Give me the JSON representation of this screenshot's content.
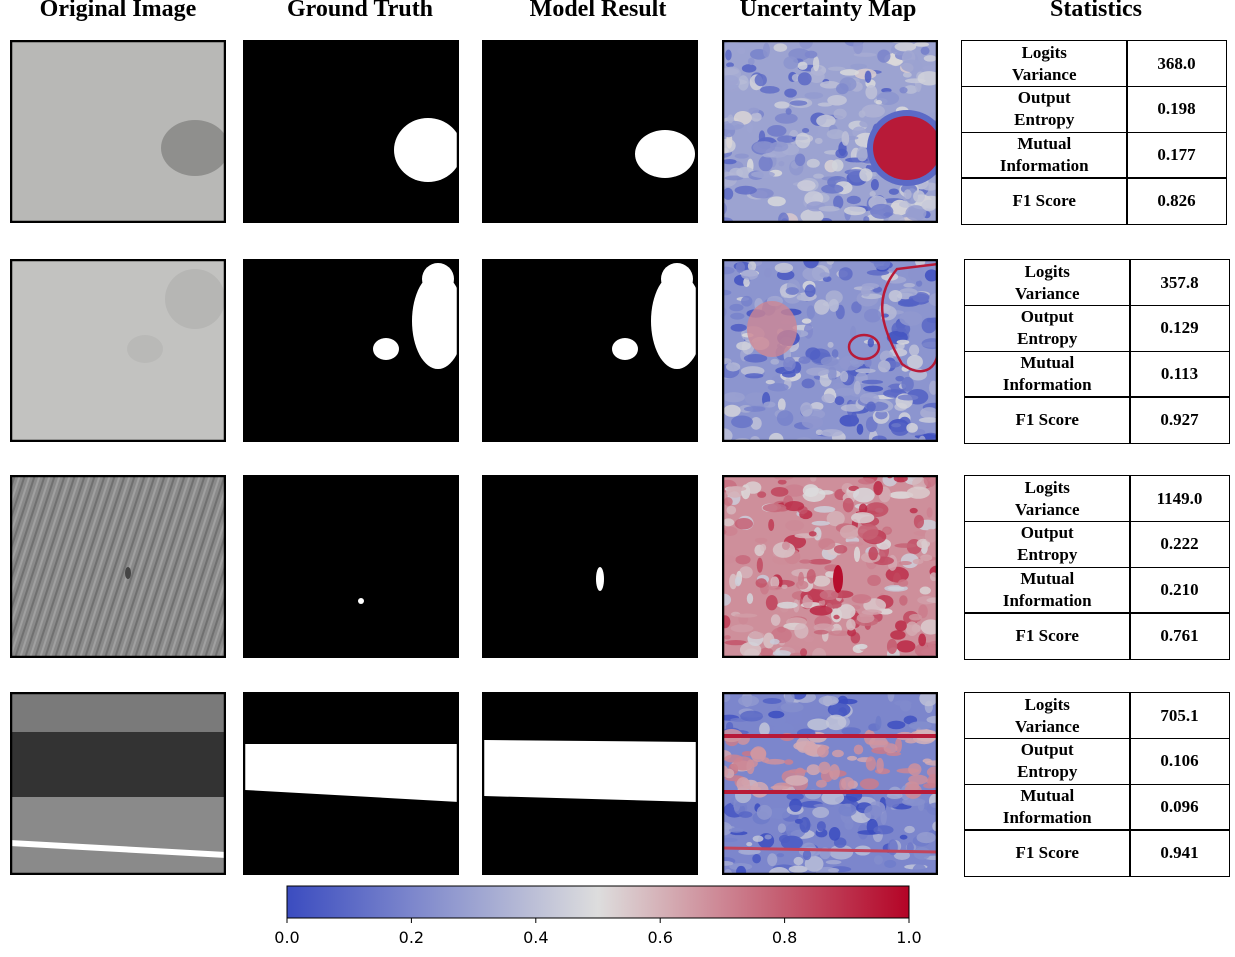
{
  "columns": [
    "Original Image",
    "Ground Truth",
    "Model Result",
    "Uncertainty Map",
    "Statistics"
  ],
  "rows": [
    {
      "stats": [
        [
          "Logits Variance",
          "368.0"
        ],
        [
          "Output Entropy",
          "0.198"
        ],
        [
          "Mutual Information",
          "0.177"
        ],
        [
          "F1 Score",
          "0.826"
        ]
      ]
    },
    {
      "stats": [
        [
          "Logits Variance",
          "357.8"
        ],
        [
          "Output Entropy",
          "0.129"
        ],
        [
          "Mutual Information",
          "0.113"
        ],
        [
          "F1 Score",
          "0.927"
        ]
      ]
    },
    {
      "stats": [
        [
          "Logits Variance",
          "1149.0"
        ],
        [
          "Output Entropy",
          "0.222"
        ],
        [
          "Mutual Information",
          "0.210"
        ],
        [
          "F1 Score",
          "0.761"
        ]
      ]
    },
    {
      "stats": [
        [
          "Logits Variance",
          "705.1"
        ],
        [
          "Output Entropy",
          "0.106"
        ],
        [
          "Mutual Information",
          "0.096"
        ],
        [
          "F1 Score",
          "0.941"
        ]
      ]
    }
  ],
  "colorbar": {
    "lim": [
      0,
      1
    ],
    "ticks": [
      {
        "value": 0,
        "label": "0.0"
      },
      {
        "value": 0.2,
        "label": "0.2"
      },
      {
        "value": 0.4,
        "label": "0.4"
      },
      {
        "value": 0.6,
        "label": "0.6"
      },
      {
        "value": 0.8,
        "label": "0.8"
      },
      {
        "value": 1,
        "label": "1.0"
      }
    ]
  }
}
